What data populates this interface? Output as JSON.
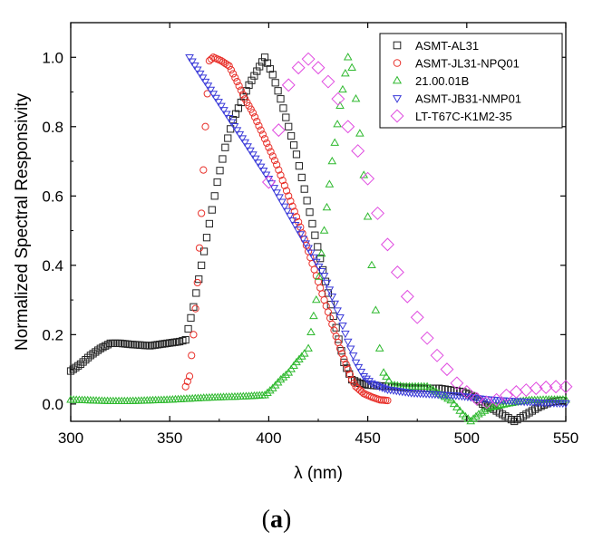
{
  "chart_data": {
    "type": "scatter",
    "title": "",
    "xlabel": "λ (nm)",
    "ylabel": "Normalized Spectral Responsivity",
    "xlim": [
      300,
      550
    ],
    "ylim": [
      -0.05,
      1.1
    ],
    "xticks": [
      300,
      350,
      400,
      450,
      500,
      550
    ],
    "yticks": [
      0.0,
      0.2,
      0.4,
      0.6,
      0.8,
      1.0
    ],
    "xtick_labels": [
      "300",
      "350",
      "400",
      "450",
      "500",
      "550"
    ],
    "ytick_labels": [
      "0.0",
      "0.2",
      "0.4",
      "0.6",
      "0.8",
      "1.0"
    ],
    "legend_position": "top-right",
    "panel_label": {
      "open": "(",
      "letter": "a",
      "close": ")"
    },
    "series": [
      {
        "name": "ASMT-AL31",
        "marker": "square",
        "color": "#222222",
        "points": [
          [
            300,
            0.095
          ],
          [
            305,
            0.115
          ],
          [
            310,
            0.14
          ],
          [
            315,
            0.16
          ],
          [
            320,
            0.175
          ],
          [
            325,
            0.175
          ],
          [
            330,
            0.172
          ],
          [
            335,
            0.17
          ],
          [
            340,
            0.168
          ],
          [
            345,
            0.172
          ],
          [
            350,
            0.176
          ],
          [
            355,
            0.18
          ],
          [
            358,
            0.185
          ],
          [
            362,
            0.28
          ],
          [
            366,
            0.4
          ],
          [
            370,
            0.52
          ],
          [
            374,
            0.64
          ],
          [
            378,
            0.74
          ],
          [
            382,
            0.82
          ],
          [
            386,
            0.87
          ],
          [
            390,
            0.92
          ],
          [
            394,
            0.96
          ],
          [
            398,
            1.0
          ],
          [
            402,
            0.95
          ],
          [
            406,
            0.88
          ],
          [
            410,
            0.8
          ],
          [
            414,
            0.72
          ],
          [
            418,
            0.62
          ],
          [
            422,
            0.52
          ],
          [
            426,
            0.42
          ],
          [
            430,
            0.32
          ],
          [
            434,
            0.22
          ],
          [
            438,
            0.12
          ],
          [
            442,
            0.07
          ],
          [
            446,
            0.06
          ],
          [
            450,
            0.055
          ],
          [
            456,
            0.052
          ],
          [
            462,
            0.05
          ],
          [
            468,
            0.048
          ],
          [
            474,
            0.046
          ],
          [
            480,
            0.045
          ],
          [
            486,
            0.045
          ],
          [
            492,
            0.04
          ],
          [
            498,
            0.035
          ],
          [
            504,
            0.02
          ],
          [
            508,
            0.0
          ],
          [
            512,
            -0.01
          ],
          [
            518,
            -0.03
          ],
          [
            524,
            -0.05
          ],
          [
            530,
            -0.03
          ],
          [
            536,
            -0.01
          ],
          [
            542,
            0.005
          ],
          [
            548,
            0.01
          ]
        ]
      },
      {
        "name": "ASMT-JL31-NPQ01",
        "marker": "circle",
        "color": "#e8302a",
        "points": [
          [
            358,
            0.05
          ],
          [
            360,
            0.08
          ],
          [
            362,
            0.2
          ],
          [
            364,
            0.35
          ],
          [
            366,
            0.55
          ],
          [
            368,
            0.8
          ],
          [
            370,
            0.99
          ],
          [
            372,
            1.0
          ],
          [
            376,
            0.99
          ],
          [
            380,
            0.975
          ],
          [
            384,
            0.93
          ],
          [
            388,
            0.88
          ],
          [
            392,
            0.84
          ],
          [
            396,
            0.79
          ],
          [
            400,
            0.74
          ],
          [
            404,
            0.69
          ],
          [
            408,
            0.63
          ],
          [
            412,
            0.57
          ],
          [
            416,
            0.51
          ],
          [
            420,
            0.44
          ],
          [
            424,
            0.37
          ],
          [
            428,
            0.3
          ],
          [
            432,
            0.23
          ],
          [
            436,
            0.16
          ],
          [
            440,
            0.1
          ],
          [
            442,
            0.07
          ],
          [
            444,
            0.05
          ],
          [
            448,
            0.03
          ],
          [
            452,
            0.02
          ],
          [
            456,
            0.012
          ],
          [
            460,
            0.01
          ]
        ]
      },
      {
        "name": "21.00.01B",
        "marker": "triangle-up",
        "color": "#2fb92f",
        "points": [
          [
            300,
            0.012
          ],
          [
            310,
            0.01
          ],
          [
            320,
            0.008
          ],
          [
            330,
            0.008
          ],
          [
            340,
            0.01
          ],
          [
            350,
            0.012
          ],
          [
            360,
            0.015
          ],
          [
            370,
            0.018
          ],
          [
            380,
            0.02
          ],
          [
            390,
            0.022
          ],
          [
            398,
            0.025
          ],
          [
            402,
            0.045
          ],
          [
            406,
            0.07
          ],
          [
            410,
            0.09
          ],
          [
            414,
            0.12
          ],
          [
            418,
            0.145
          ],
          [
            420,
            0.16
          ],
          [
            424,
            0.3
          ],
          [
            428,
            0.5
          ],
          [
            432,
            0.7
          ],
          [
            436,
            0.86
          ],
          [
            440,
            1.0
          ],
          [
            442,
            0.97
          ],
          [
            444,
            0.88
          ],
          [
            446,
            0.78
          ],
          [
            448,
            0.66
          ],
          [
            450,
            0.54
          ],
          [
            452,
            0.4
          ],
          [
            454,
            0.27
          ],
          [
            456,
            0.16
          ],
          [
            458,
            0.09
          ],
          [
            462,
            0.055
          ],
          [
            468,
            0.05
          ],
          [
            474,
            0.05
          ],
          [
            480,
            0.05
          ],
          [
            486,
            0.03
          ],
          [
            492,
            0.01
          ],
          [
            498,
            -0.03
          ],
          [
            502,
            -0.05
          ],
          [
            506,
            -0.03
          ],
          [
            512,
            -0.01
          ],
          [
            520,
            0.0
          ],
          [
            530,
            0.01
          ],
          [
            540,
            0.012
          ],
          [
            550,
            0.012
          ]
        ]
      },
      {
        "name": "ASMT-JB31-NMP01",
        "marker": "triangle-down",
        "color": "#3b3bd9",
        "points": [
          [
            360,
            1.0
          ],
          [
            364,
            0.965
          ],
          [
            368,
            0.93
          ],
          [
            372,
            0.895
          ],
          [
            376,
            0.86
          ],
          [
            380,
            0.825
          ],
          [
            384,
            0.79
          ],
          [
            388,
            0.755
          ],
          [
            392,
            0.72
          ],
          [
            396,
            0.685
          ],
          [
            400,
            0.65
          ],
          [
            404,
            0.61
          ],
          [
            408,
            0.57
          ],
          [
            412,
            0.53
          ],
          [
            416,
            0.49
          ],
          [
            420,
            0.45
          ],
          [
            424,
            0.41
          ],
          [
            428,
            0.37
          ],
          [
            432,
            0.31
          ],
          [
            436,
            0.25
          ],
          [
            440,
            0.18
          ],
          [
            444,
            0.12
          ],
          [
            448,
            0.08
          ],
          [
            452,
            0.06
          ],
          [
            456,
            0.05
          ],
          [
            460,
            0.042
          ],
          [
            466,
            0.037
          ],
          [
            472,
            0.032
          ],
          [
            478,
            0.03
          ],
          [
            484,
            0.028
          ],
          [
            490,
            0.026
          ],
          [
            496,
            0.024
          ],
          [
            502,
            0.02
          ],
          [
            508,
            0.015
          ],
          [
            514,
            0.012
          ],
          [
            520,
            0.01
          ],
          [
            526,
            0.008
          ],
          [
            532,
            0.006
          ],
          [
            538,
            0.004
          ],
          [
            544,
            0.003
          ],
          [
            550,
            0.002
          ]
        ]
      },
      {
        "name": "LT-T67C-K1M2-35",
        "marker": "diamond",
        "color": "#e04be0",
        "points": [
          [
            400,
            0.64
          ],
          [
            405,
            0.79
          ],
          [
            410,
            0.92
          ],
          [
            415,
            0.97
          ],
          [
            420,
            0.995
          ],
          [
            425,
            0.97
          ],
          [
            430,
            0.93
          ],
          [
            435,
            0.88
          ],
          [
            440,
            0.8
          ],
          [
            445,
            0.73
          ],
          [
            450,
            0.65
          ],
          [
            455,
            0.55
          ],
          [
            460,
            0.46
          ],
          [
            465,
            0.38
          ],
          [
            470,
            0.31
          ],
          [
            475,
            0.25
          ],
          [
            480,
            0.19
          ],
          [
            485,
            0.14
          ],
          [
            490,
            0.1
          ],
          [
            495,
            0.06
          ],
          [
            500,
            0.035
          ],
          [
            505,
            0.015
          ],
          [
            510,
            0.005
          ],
          [
            515,
            0.012
          ],
          [
            520,
            0.025
          ],
          [
            525,
            0.035
          ],
          [
            530,
            0.04
          ],
          [
            535,
            0.045
          ],
          [
            540,
            0.048
          ],
          [
            545,
            0.05
          ],
          [
            550,
            0.05
          ]
        ]
      }
    ]
  }
}
